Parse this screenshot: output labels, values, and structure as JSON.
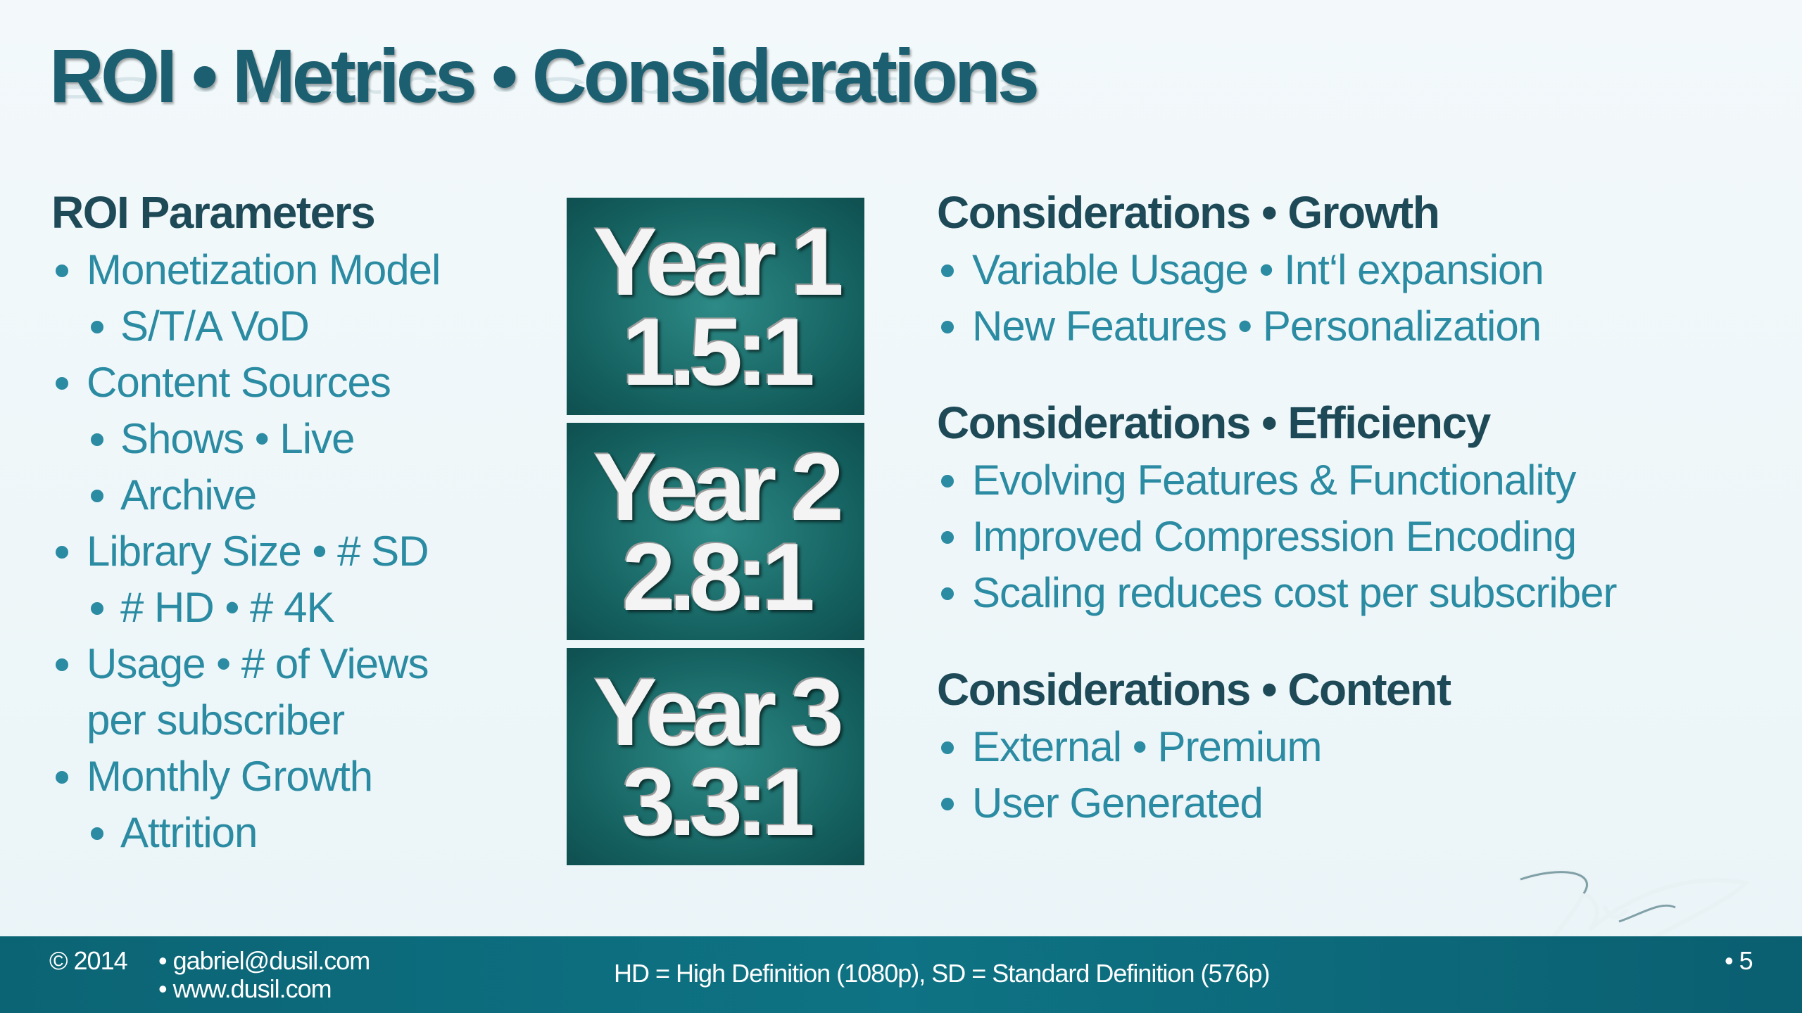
{
  "title": "ROI • Metrics • Considerations",
  "left": {
    "heading": "ROI Parameters",
    "items": [
      {
        "level": 1,
        "lines": [
          "Monetization Model"
        ]
      },
      {
        "level": 2,
        "lines": [
          "S/T/A VoD"
        ]
      },
      {
        "level": 1,
        "lines": [
          "Content Sources"
        ]
      },
      {
        "level": 2,
        "lines": [
          "Shows • Live"
        ]
      },
      {
        "level": 2,
        "lines": [
          "Archive"
        ]
      },
      {
        "level": 1,
        "lines": [
          "Library Size • # SD"
        ]
      },
      {
        "level": 2,
        "lines": [
          "# HD • # 4K"
        ]
      },
      {
        "level": 1,
        "lines": [
          "Usage • # of Views",
          "per subscriber"
        ]
      },
      {
        "level": 1,
        "lines": [
          "Monthly  Growth"
        ]
      },
      {
        "level": 2,
        "lines": [
          "Attrition"
        ]
      }
    ]
  },
  "years": [
    {
      "label": "Year 1",
      "ratio": "1.5:1"
    },
    {
      "label": "Year 2",
      "ratio": "2.8:1"
    },
    {
      "label": "Year 3",
      "ratio": "3.3:1"
    }
  ],
  "sections": [
    {
      "heading": "Considerations • Growth",
      "items": [
        "Variable Usage • Int‘l expansion",
        "New Features • Personalization"
      ]
    },
    {
      "heading": "Considerations • Efficiency",
      "items": [
        "Evolving Features & Functionality",
        "Improved Compression Encoding",
        "Scaling reduces cost per subscriber"
      ]
    },
    {
      "heading": "Considerations • Content",
      "items": [
        "External • Premium",
        "User Generated"
      ]
    }
  ],
  "footer": {
    "copyright": "© 2014",
    "email": "gabriel@dusil.com",
    "website": "www.dusil.com",
    "note": "HD = High Definition (1080p), SD = Standard Definition (576p)",
    "page": "5"
  }
}
